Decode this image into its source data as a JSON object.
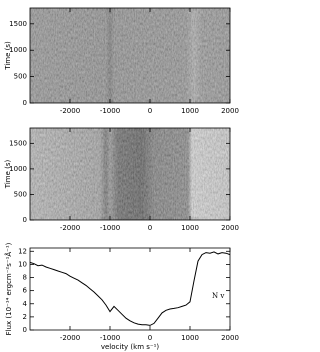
{
  "chart_data": [
    {
      "type": "image",
      "ylabel": "Time (s)",
      "xlim": [
        -3000,
        2000
      ],
      "ylim": [
        0,
        1800
      ],
      "xticks": [
        -2000,
        -1000,
        0,
        1000,
        2000
      ],
      "yticks": [
        0,
        500,
        1000,
        1500
      ]
    },
    {
      "type": "image",
      "ylabel": "Time (s)",
      "xlim": [
        -3000,
        2000
      ],
      "ylim": [
        0,
        1800
      ],
      "xticks": [
        -2000,
        -1000,
        0,
        1000,
        2000
      ],
      "yticks": [
        0,
        500,
        1000,
        1500
      ]
    },
    {
      "type": "line",
      "xlabel": "velocity (km s⁻¹)",
      "ylabel": "Flux (10⁻¹⁴ ergcm⁻²s⁻¹Å⁻¹)",
      "annotation": "N v",
      "color": "#000000",
      "xlim": [
        -3000,
        2000
      ],
      "ylim": [
        0,
        12.5
      ],
      "xticks": [
        -2000,
        -1000,
        0,
        1000,
        2000
      ],
      "yticks": [
        0,
        2,
        4,
        6,
        8,
        10,
        12
      ],
      "x": [
        -3000,
        -2900,
        -2800,
        -2700,
        -2600,
        -2500,
        -2400,
        -2300,
        -2200,
        -2100,
        -2000,
        -1900,
        -1800,
        -1700,
        -1600,
        -1500,
        -1400,
        -1300,
        -1200,
        -1100,
        -1000,
        -900,
        -800,
        -700,
        -600,
        -500,
        -400,
        -300,
        -200,
        -100,
        0,
        100,
        200,
        300,
        400,
        500,
        600,
        700,
        800,
        900,
        1000,
        1100,
        1200,
        1300,
        1400,
        1500,
        1600,
        1700,
        1800,
        1900,
        2000
      ],
      "values": [
        10.3,
        10.1,
        9.8,
        9.9,
        9.6,
        9.4,
        9.2,
        9.0,
        8.8,
        8.6,
        8.2,
        7.9,
        7.6,
        7.2,
        6.8,
        6.3,
        5.8,
        5.2,
        4.6,
        3.8,
        2.8,
        3.6,
        3.0,
        2.4,
        1.8,
        1.4,
        1.1,
        0.9,
        0.8,
        0.8,
        0.7,
        1.0,
        1.8,
        2.6,
        3.0,
        3.2,
        3.3,
        3.4,
        3.6,
        3.8,
        4.3,
        7.5,
        10.5,
        11.5,
        11.8,
        11.7,
        11.9,
        11.6,
        11.8,
        11.7,
        11.5
      ]
    }
  ]
}
